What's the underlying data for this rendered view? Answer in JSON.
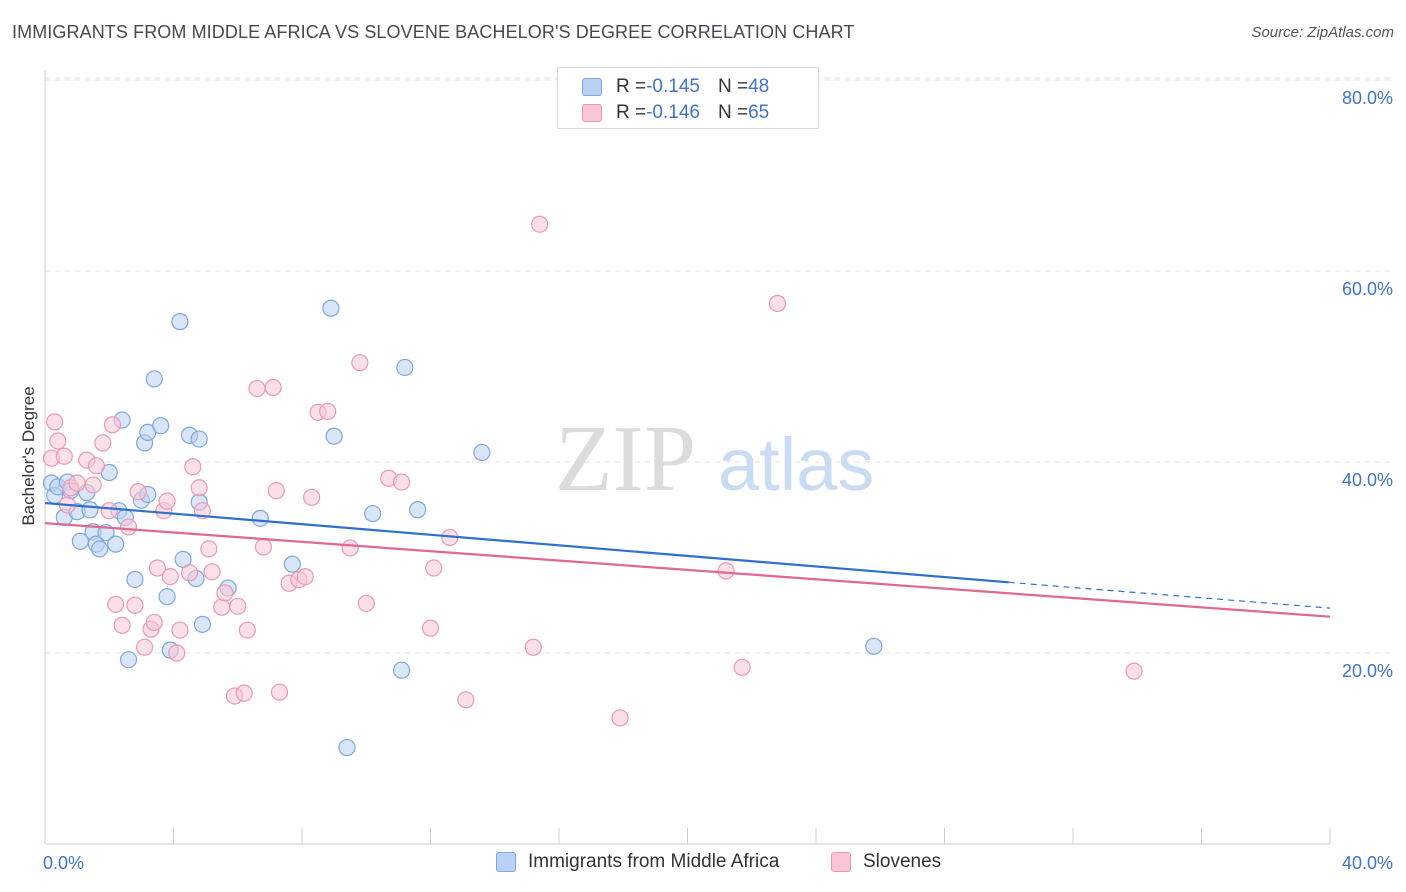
{
  "header": {
    "title": "IMMIGRANTS FROM MIDDLE AFRICA VS SLOVENE BACHELOR'S DEGREE CORRELATION CHART",
    "source": "Source: ZipAtlas.com"
  },
  "watermark": {
    "part1": "ZIP",
    "part2": "atlas"
  },
  "legend_top": {
    "series": [
      {
        "r_label": "R = ",
        "r_value": "-0.145",
        "n_label": "N = ",
        "n_value": "48"
      },
      {
        "r_label": "R = ",
        "r_value": "-0.146",
        "n_label": "N = ",
        "n_value": "65"
      }
    ]
  },
  "colors": {
    "blue_fill": "#b9d1f3",
    "blue_stroke": "#7ea7e0",
    "blue_line": "#2f6fcf",
    "pink_fill": "#f9c6d5",
    "pink_stroke": "#ec98b3",
    "pink_line": "#e06892",
    "tick_label": "#3f74c9",
    "grid": "#e3e3e3"
  },
  "chart_data": {
    "type": "scatter",
    "title": "IMMIGRANTS FROM MIDDLE AFRICA VS SLOVENE BACHELOR'S DEGREE CORRELATION CHART",
    "xlabel": "",
    "ylabel": "Bachelor's Degree",
    "xlim": [
      0,
      40
    ],
    "ylim": [
      0,
      85
    ],
    "x_tick_labels": [
      "0.0%",
      "40.0%"
    ],
    "y_ticks": [
      20,
      40,
      60,
      80
    ],
    "y_tick_labels": [
      "20.0%",
      "40.0%",
      "60.0%",
      "80.0%"
    ],
    "grid": true,
    "legend_position": "bottom",
    "series": [
      {
        "name": "Immigrants from Middle Africa",
        "r": -0.145,
        "n": 48,
        "trend": {
          "x_start": 0,
          "y_start": 35.7,
          "x_solid_end": 30,
          "y_solid_end": 27.4,
          "x_end": 40,
          "y_end": 24.7
        },
        "points": [
          [
            0.2,
            37.8
          ],
          [
            0.3,
            36.5
          ],
          [
            0.4,
            37.4
          ],
          [
            0.6,
            34.2
          ],
          [
            0.7,
            37.9
          ],
          [
            0.8,
            37.0
          ],
          [
            1.0,
            34.8
          ],
          [
            1.1,
            31.7
          ],
          [
            1.3,
            36.8
          ],
          [
            1.5,
            32.7
          ],
          [
            1.6,
            31.4
          ],
          [
            1.7,
            30.9
          ],
          [
            1.9,
            32.6
          ],
          [
            2.0,
            38.9
          ],
          [
            2.2,
            31.4
          ],
          [
            2.3,
            34.9
          ],
          [
            2.4,
            44.4
          ],
          [
            2.5,
            34.2
          ],
          [
            2.6,
            19.3
          ],
          [
            2.8,
            27.7
          ],
          [
            3.0,
            36.0
          ],
          [
            3.1,
            42.0
          ],
          [
            3.2,
            36.6
          ],
          [
            3.2,
            43.1
          ],
          [
            3.4,
            48.7
          ],
          [
            3.6,
            43.8
          ],
          [
            3.8,
            25.9
          ],
          [
            3.9,
            20.3
          ],
          [
            4.2,
            54.7
          ],
          [
            4.3,
            29.8
          ],
          [
            4.5,
            42.8
          ],
          [
            4.7,
            27.8
          ],
          [
            4.8,
            42.4
          ],
          [
            4.9,
            23.0
          ],
          [
            5.7,
            26.8
          ],
          [
            6.7,
            34.1
          ],
          [
            7.7,
            29.3
          ],
          [
            8.9,
            56.1
          ],
          [
            9.0,
            42.7
          ],
          [
            10.2,
            34.6
          ],
          [
            11.1,
            18.2
          ],
          [
            11.6,
            35.0
          ],
          [
            13.6,
            41.0
          ],
          [
            25.8,
            20.7
          ],
          [
            9.4,
            10.1
          ],
          [
            11.2,
            49.9
          ],
          [
            4.8,
            35.8
          ],
          [
            1.4,
            35.0
          ]
        ]
      },
      {
        "name": "Slovenes",
        "r": -0.146,
        "n": 65,
        "trend": {
          "x_start": 0,
          "y_start": 33.6,
          "x_end": 40,
          "y_end": 23.8
        },
        "points": [
          [
            0.2,
            40.4
          ],
          [
            0.3,
            44.2
          ],
          [
            0.4,
            42.2
          ],
          [
            0.6,
            40.6
          ],
          [
            0.7,
            35.5
          ],
          [
            0.8,
            37.3
          ],
          [
            1.0,
            37.8
          ],
          [
            1.3,
            40.2
          ],
          [
            1.5,
            37.6
          ],
          [
            1.6,
            39.6
          ],
          [
            1.8,
            42.0
          ],
          [
            2.0,
            34.9
          ],
          [
            2.1,
            43.9
          ],
          [
            2.2,
            25.1
          ],
          [
            2.4,
            22.9
          ],
          [
            2.6,
            33.2
          ],
          [
            2.8,
            25.0
          ],
          [
            2.9,
            36.9
          ],
          [
            3.1,
            20.6
          ],
          [
            3.3,
            22.5
          ],
          [
            3.4,
            23.2
          ],
          [
            3.5,
            28.9
          ],
          [
            3.7,
            34.9
          ],
          [
            3.8,
            35.9
          ],
          [
            3.9,
            28.0
          ],
          [
            4.1,
            20.0
          ],
          [
            4.2,
            22.4
          ],
          [
            4.5,
            28.4
          ],
          [
            4.6,
            39.5
          ],
          [
            4.8,
            37.3
          ],
          [
            4.9,
            34.9
          ],
          [
            5.1,
            30.9
          ],
          [
            5.2,
            28.5
          ],
          [
            5.5,
            24.8
          ],
          [
            5.6,
            26.3
          ],
          [
            5.9,
            15.5
          ],
          [
            6.0,
            24.9
          ],
          [
            6.2,
            15.8
          ],
          [
            6.3,
            22.4
          ],
          [
            6.6,
            47.7
          ],
          [
            6.8,
            31.1
          ],
          [
            7.1,
            47.8
          ],
          [
            7.2,
            37.0
          ],
          [
            7.3,
            15.9
          ],
          [
            7.6,
            27.3
          ],
          [
            7.9,
            27.7
          ],
          [
            8.1,
            28.0
          ],
          [
            8.3,
            36.3
          ],
          [
            8.5,
            45.2
          ],
          [
            8.8,
            45.3
          ],
          [
            9.5,
            31.0
          ],
          [
            9.8,
            50.4
          ],
          [
            10.0,
            25.2
          ],
          [
            10.7,
            38.3
          ],
          [
            11.1,
            37.9
          ],
          [
            12.0,
            22.6
          ],
          [
            12.1,
            28.9
          ],
          [
            12.6,
            32.1
          ],
          [
            13.1,
            15.1
          ],
          [
            15.2,
            20.6
          ],
          [
            15.4,
            64.9
          ],
          [
            17.9,
            13.2
          ],
          [
            21.2,
            28.6
          ],
          [
            21.7,
            18.5
          ],
          [
            22.8,
            56.6
          ],
          [
            33.9,
            18.1
          ]
        ]
      }
    ]
  }
}
